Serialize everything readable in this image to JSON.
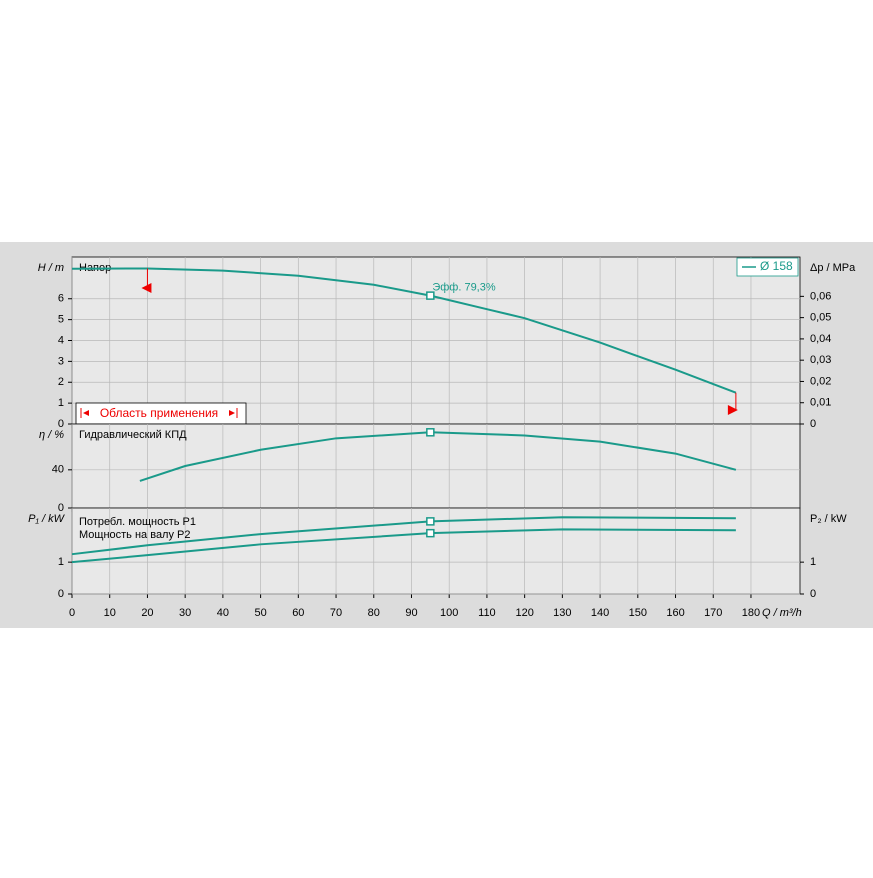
{
  "chart_data": [
    {
      "type": "line",
      "ylabel": "H / m",
      "y2label": "Δp / MPa",
      "label": "Напор",
      "xlim": [
        0,
        193
      ],
      "ylim": [
        0,
        8
      ],
      "yticks": [
        0,
        1,
        2,
        3,
        4,
        5,
        6
      ],
      "y2lim": [
        0,
        0.0785
      ],
      "y2ticks": [
        0,
        {
          "value": 0.01,
          "label": "0,01"
        },
        {
          "value": 0.02,
          "label": "0,02"
        },
        {
          "value": 0.03,
          "label": "0,03"
        },
        {
          "value": 0.04,
          "label": "0,04"
        },
        {
          "value": 0.05,
          "label": "0,05"
        },
        {
          "value": 0.06,
          "label": "0,06"
        }
      ],
      "x": [
        0,
        20,
        40,
        60,
        80,
        95,
        110,
        120,
        140,
        160,
        176
      ],
      "series": [
        {
          "name": "Ø 158",
          "color": "#1a9a8a",
          "values": [
            7.44,
            7.45,
            7.35,
            7.1,
            6.67,
            6.15,
            5.5,
            5.07,
            3.9,
            2.6,
            1.5
          ]
        }
      ],
      "duty_point": {
        "x": 95,
        "y": 6.15,
        "label": "Эфф.  79,3%"
      },
      "operating_range": {
        "label": "Область применения",
        "x": [
          20,
          176
        ]
      }
    },
    {
      "type": "line",
      "ylabel": "η / %",
      "label": "Гидравлический КПД",
      "xlim": [
        0,
        193
      ],
      "ylim": [
        0,
        88
      ],
      "yticks": [
        0,
        40
      ],
      "x": [
        18,
        30,
        50,
        70,
        95,
        120,
        140,
        160,
        176
      ],
      "series": [
        {
          "color": "#1a9a8a",
          "values": [
            28.4,
            44,
            61,
            73,
            79.3,
            76,
            69.5,
            57,
            40
          ]
        }
      ],
      "duty_point": {
        "x": 95,
        "y": 79.3
      }
    },
    {
      "type": "line",
      "ylabel": "P₁ / kW",
      "y2label": "P₂ / kW",
      "xlim": [
        0,
        193
      ],
      "ylim": [
        0,
        2.7
      ],
      "yticks": [
        0,
        1
      ],
      "y2lim": [
        0,
        2.7
      ],
      "y2ticks": [
        0,
        1
      ],
      "xticks": [
        0,
        10,
        20,
        30,
        40,
        50,
        60,
        70,
        80,
        90,
        100,
        110,
        120,
        130,
        140,
        150,
        160,
        170,
        180
      ],
      "xlabel": "Q / m³/h",
      "x": [
        0,
        20,
        50,
        95,
        130,
        176
      ],
      "series": [
        {
          "name": "Потребл. мощность P1",
          "color": "#1a9a8a",
          "values": [
            1.25,
            1.53,
            1.88,
            2.28,
            2.41,
            2.38
          ]
        },
        {
          "name": "Мощность на валу P2",
          "color": "#1a9a8a",
          "values": [
            1.0,
            1.22,
            1.56,
            1.91,
            2.03,
            2.0
          ]
        }
      ],
      "duty_point": {
        "x": 95,
        "y": [
          2.28,
          1.91
        ]
      }
    }
  ]
}
